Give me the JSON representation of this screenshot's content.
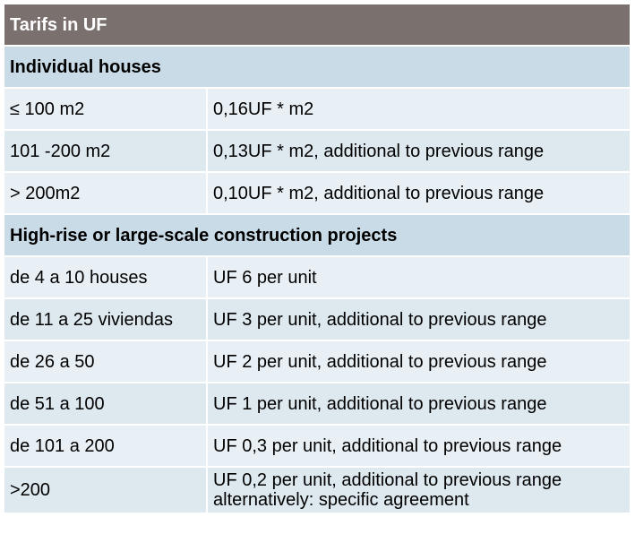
{
  "title": "Tarifs in UF",
  "sections": [
    {
      "heading": "Individual houses",
      "rows": [
        {
          "range": "≤ 100 m2",
          "tariff": "0,16UF * m2"
        },
        {
          "range": "101 -200 m2",
          "tariff": "0,13UF * m2, additional to previous range"
        },
        {
          "range": "> 200m2",
          "tariff": "0,10UF * m2, additional to previous range"
        }
      ]
    },
    {
      "heading": "High-rise or large-scale construction projects",
      "rows": [
        {
          "range": "de 4 a 10 houses",
          "tariff": "UF 6 per unit"
        },
        {
          "range": "de 11 a 25 viviendas",
          "tariff": "UF 3 per unit, additional to previous range"
        },
        {
          "range": "de 26 a 50",
          "tariff": "UF 2 per unit, additional to previous range"
        },
        {
          "range": "de 51 a 100",
          "tariff": "UF 1 per unit, additional to previous range"
        },
        {
          "range": "de 101 a 200",
          "tariff": "UF 0,3 per unit, additional to previous range"
        },
        {
          "range": ">200",
          "tariff": "UF 0,2 per unit, additional to previous range",
          "tariff_line2": "alternatively: specific agreement"
        }
      ]
    }
  ]
}
